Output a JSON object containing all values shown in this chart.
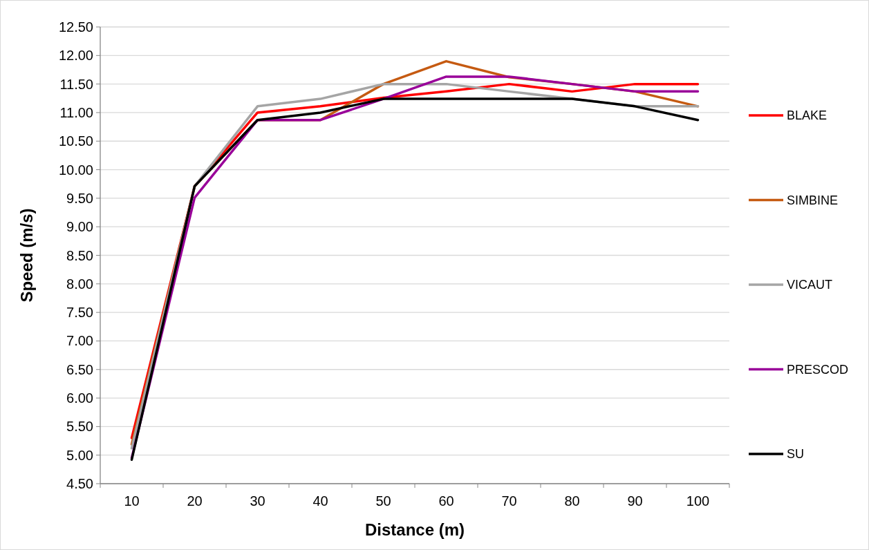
{
  "chart_data": {
    "type": "line",
    "xlabel": "Distance (m)",
    "ylabel": "Speed (m/s)",
    "categories": [
      "10",
      "20",
      "30",
      "40",
      "50",
      "60",
      "70",
      "80",
      "90",
      "100"
    ],
    "series": [
      {
        "name": "BLAKE",
        "color": "#ff0000",
        "values": [
          5.3,
          9.71,
          11.0,
          11.11,
          11.26,
          11.37,
          11.5,
          11.37,
          11.5,
          11.5
        ]
      },
      {
        "name": "SIMBINE",
        "color": "#c55a11",
        "values": [
          5.19,
          9.71,
          10.87,
          10.87,
          11.5,
          11.9,
          11.62,
          11.5,
          11.37,
          11.11
        ]
      },
      {
        "name": "VICAUT",
        "color": "#a5a5a5",
        "values": [
          5.12,
          9.71,
          11.11,
          11.24,
          11.5,
          11.5,
          11.37,
          11.24,
          11.11,
          11.11
        ]
      },
      {
        "name": "PRESCOD",
        "color": "#990099",
        "values": [
          4.95,
          9.51,
          10.87,
          10.87,
          11.24,
          11.63,
          11.63,
          11.5,
          11.37,
          11.37
        ]
      },
      {
        "name": "SU",
        "color": "#000000",
        "values": [
          4.92,
          9.71,
          10.87,
          11.0,
          11.24,
          11.24,
          11.24,
          11.24,
          11.11,
          10.87
        ]
      }
    ],
    "ylim": [
      4.5,
      12.5
    ],
    "yticks": [
      {
        "value": 4.5,
        "label": "4.50"
      },
      {
        "value": 5,
        "label": "5.00"
      },
      {
        "value": 5.5,
        "label": "5.50"
      },
      {
        "value": 6,
        "label": "6.00"
      },
      {
        "value": 6.5,
        "label": "6.50"
      },
      {
        "value": 7,
        "label": "7.00"
      },
      {
        "value": 7.5,
        "label": "7.50"
      },
      {
        "value": 8,
        "label": "8.00"
      },
      {
        "value": 8.5,
        "label": "8.50"
      },
      {
        "value": 9,
        "label": "9.00"
      },
      {
        "value": 9.5,
        "label": "9.50"
      },
      {
        "value": 10,
        "label": "10.00"
      },
      {
        "value": 10.5,
        "label": "10.50"
      },
      {
        "value": 11,
        "label": "11.00"
      },
      {
        "value": 11.5,
        "label": "11.50"
      },
      {
        "value": 12,
        "label": "12.00"
      },
      {
        "value": 12.5,
        "label": "12.50"
      }
    ],
    "grid": "y",
    "legend": "right",
    "marker": "none",
    "line_style": "solid"
  }
}
